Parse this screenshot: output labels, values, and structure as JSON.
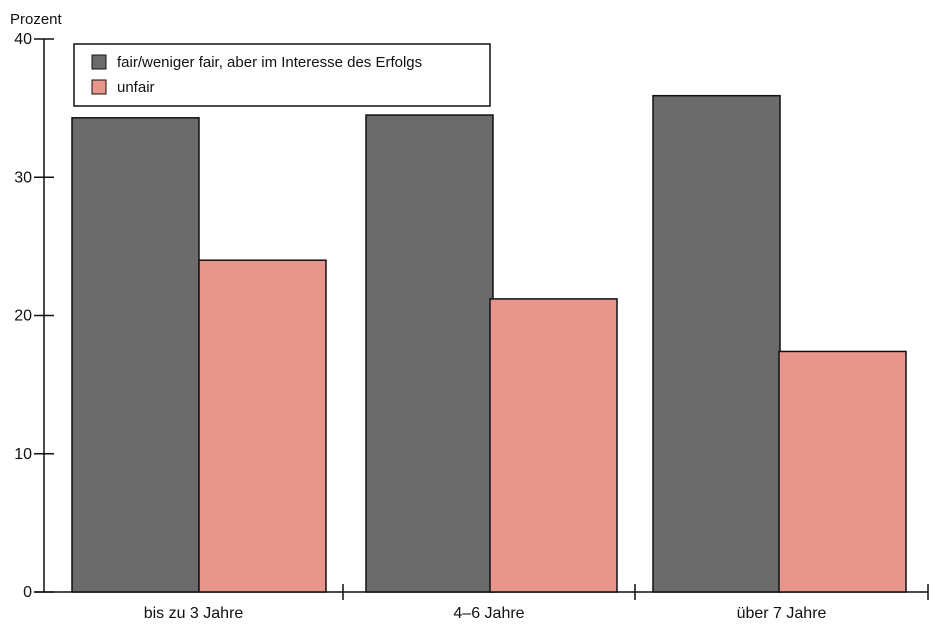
{
  "chart_data": {
    "type": "bar",
    "ylabel": "Prozent",
    "xlabel": "",
    "title": "",
    "ylim": [
      0,
      40
    ],
    "yticks": [
      0,
      10,
      20,
      30,
      40
    ],
    "categories": [
      "bis zu 3 Jahre",
      "4–6 Jahre",
      "über 7 Jahre"
    ],
    "series": [
      {
        "name": "fair/weniger fair, aber im Interesse des Erfolgs",
        "values": [
          34.3,
          34.5,
          35.9
        ],
        "color": "#6b6b6b"
      },
      {
        "name": "unfair",
        "values": [
          24.0,
          21.2,
          17.4
        ],
        "color": "#e8968c"
      }
    ],
    "legend_position": "top-left",
    "grid": false
  }
}
